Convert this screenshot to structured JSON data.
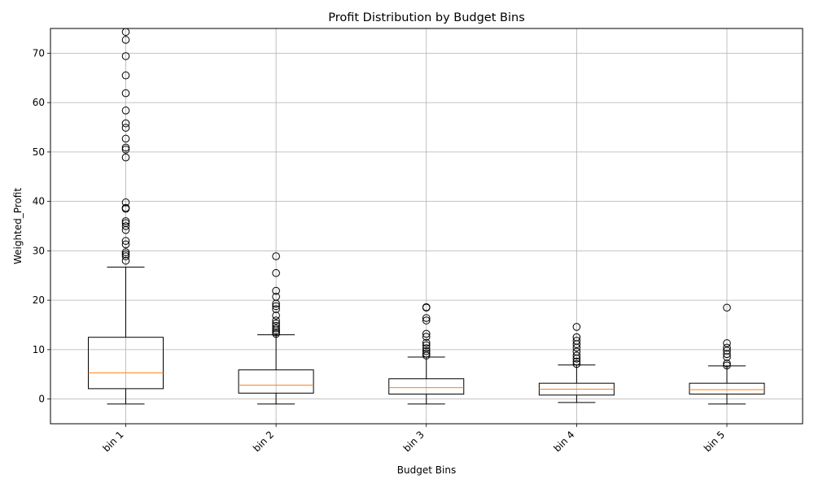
{
  "chart_data": {
    "type": "box",
    "title": "Profit Distribution by Budget Bins",
    "xlabel": "Budget Bins",
    "ylabel": "Weighted_Profit",
    "ylim": [
      -5,
      75
    ],
    "yticks": [
      0,
      10,
      20,
      30,
      40,
      50,
      60,
      70
    ],
    "grid": true,
    "categories": [
      "bin 1",
      "bin 2",
      "bin 3",
      "bin 4",
      "bin 5"
    ],
    "boxes": [
      {
        "category": "bin 1",
        "whisker_low": -1,
        "q1": 2.1,
        "median": 5.3,
        "q3": 12.5,
        "whisker_high": 26.7,
        "outliers": [
          28.0,
          28.9,
          29.3,
          29.7,
          31.3,
          32.0,
          34.2,
          35.0,
          35.6,
          36.0,
          38.5,
          38.7,
          39.8,
          48.9,
          50.5,
          50.9,
          52.7,
          54.9,
          55.8,
          58.4,
          61.9,
          65.5,
          69.4,
          72.7,
          74.3
        ]
      },
      {
        "category": "bin 2",
        "whisker_low": -1,
        "q1": 1.2,
        "median": 2.8,
        "q3": 5.9,
        "whisker_high": 13.0,
        "outliers": [
          13.2,
          13.5,
          13.9,
          14.3,
          14.8,
          15.3,
          15.9,
          16.9,
          18.2,
          18.8,
          19.3,
          20.7,
          21.9,
          25.5,
          28.9
        ]
      },
      {
        "category": "bin 3",
        "whisker_low": -1,
        "q1": 1.0,
        "median": 2.3,
        "q3": 4.1,
        "whisker_high": 8.5,
        "outliers": [
          8.8,
          9.2,
          9.7,
          10.3,
          10.9,
          11.4,
          12.6,
          13.2,
          15.9,
          16.4,
          18.5,
          18.6
        ]
      },
      {
        "category": "bin 4",
        "whisker_low": -0.7,
        "q1": 0.8,
        "median": 2.0,
        "q3": 3.2,
        "whisker_high": 6.9,
        "outliers": [
          7.1,
          7.6,
          8.2,
          8.8,
          9.6,
          10.4,
          11.1,
          11.8,
          12.5,
          14.6
        ]
      },
      {
        "category": "bin 5",
        "whisker_low": -1,
        "q1": 1.0,
        "median": 1.9,
        "q3": 3.2,
        "whisker_high": 6.7,
        "outliers": [
          6.8,
          7.2,
          8.5,
          9.1,
          9.8,
          10.4,
          11.3,
          18.5
        ]
      }
    ],
    "colors": {
      "box": "#000000",
      "median": "#ff7f0e",
      "grid": "#b0b0b0",
      "outlier_edge": "#000000"
    }
  }
}
